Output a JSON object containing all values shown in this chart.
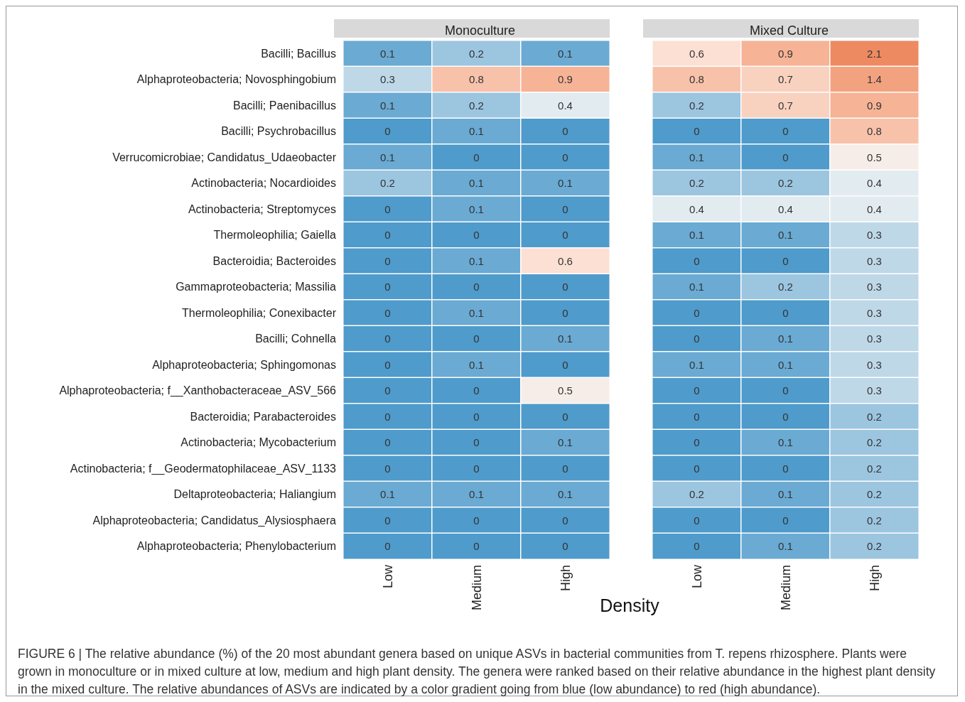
{
  "chart_data": [
    {
      "type": "heatmap",
      "title": "Monoculture",
      "xlabel": "Density",
      "categories": [
        "Low",
        "Medium",
        "High"
      ],
      "y_categories": [
        "Bacilli; Bacillus",
        "Alphaproteobacteria; Novosphingobium",
        "Bacilli; Paenibacillus",
        "Bacilli; Psychrobacillus",
        "Verrucomicrobiae; Candidatus_Udaeobacter",
        "Actinobacteria; Nocardioides",
        "Actinobacteria; Streptomyces",
        "Thermoleophilia; Gaiella",
        "Bacteroidia; Bacteroides",
        "Gammaproteobacteria; Massilia",
        "Thermoleophilia; Conexibacter",
        "Bacilli; Cohnella",
        "Alphaproteobacteria; Sphingomonas",
        "Alphaproteobacteria; f__Xanthobacteraceae_ASV_566",
        "Bacteroidia; Parabacteroides",
        "Actinobacteria; Mycobacterium",
        "Actinobacteria; f__Geodermatophilaceae_ASV_1133",
        "Deltaproteobacteria; Haliangium",
        "Alphaproteobacteria; Candidatus_Alysiosphaera",
        "Alphaproteobacteria; Phenylobacterium"
      ],
      "cells": [
        [
          0.1,
          0.2,
          0.1
        ],
        [
          0.3,
          0.8,
          0.9
        ],
        [
          0.1,
          0.2,
          0.4
        ],
        [
          0,
          0.1,
          0
        ],
        [
          0.1,
          0,
          0
        ],
        [
          0.2,
          0.1,
          0.1
        ],
        [
          0,
          0.1,
          0
        ],
        [
          0,
          0,
          0
        ],
        [
          0,
          0.1,
          0.6
        ],
        [
          0,
          0,
          0
        ],
        [
          0,
          0.1,
          0
        ],
        [
          0,
          0,
          0.1
        ],
        [
          0,
          0.1,
          0
        ],
        [
          0,
          0,
          0.5
        ],
        [
          0,
          0,
          0
        ],
        [
          0,
          0,
          0.1
        ],
        [
          0,
          0,
          0
        ],
        [
          0.1,
          0.1,
          0.1
        ],
        [
          0,
          0,
          0
        ],
        [
          0,
          0,
          0
        ]
      ],
      "data_labels": true,
      "annotations": [
        "FIGURE 6 | The relative abundance (%) of the 20 most abundant genera based on unique ASVs in bacterial communities from T. repens rhizosphere. Plants were grown in monoculture or in mixed culture at low, medium and high plant density. The genera were ranked based on their relative abundance in the highest plant density in the mixed culture. The relative abundances of ASVs are indicated by a color gradient going from blue (low abundance) to red (high abundance)."
      ]
    },
    {
      "type": "heatmap",
      "title": "Mixed Culture",
      "categories": [
        "Low",
        "Medium",
        "High"
      ],
      "y_categories": [
        "Bacilli; Bacillus",
        "Alphaproteobacteria; Novosphingobium",
        "Bacilli; Paenibacillus",
        "Bacilli; Psychrobacillus",
        "Verrucomicrobiae; Candidatus_Udaeobacter",
        "Actinobacteria; Nocardioides",
        "Actinobacteria; Streptomyces",
        "Thermoleophilia; Gaiella",
        "Bacteroidia; Bacteroides",
        "Gammaproteobacteria; Massilia",
        "Thermoleophilia; Conexibacter",
        "Bacilli; Cohnella",
        "Alphaproteobacteria; Sphingomonas",
        "Alphaproteobacteria; f__Xanthobacteraceae_ASV_566",
        "Bacteroidia; Parabacteroides",
        "Actinobacteria; Mycobacterium",
        "Actinobacteria; f__Geodermatophilaceae_ASV_1133",
        "Deltaproteobacteria; Haliangium",
        "Alphaproteobacteria; Candidatus_Alysiosphaera",
        "Alphaproteobacteria; Phenylobacterium"
      ],
      "cells": [
        [
          0.6,
          0.9,
          2.1
        ],
        [
          0.8,
          0.7,
          1.4
        ],
        [
          0.2,
          0.7,
          0.9
        ],
        [
          0,
          0,
          0.8
        ],
        [
          0.1,
          0,
          0.5
        ],
        [
          0.2,
          0.2,
          0.4
        ],
        [
          0.4,
          0.4,
          0.4
        ],
        [
          0.1,
          0.1,
          0.3
        ],
        [
          0,
          0,
          0.3
        ],
        [
          0.1,
          0.2,
          0.3
        ],
        [
          0,
          0,
          0.3
        ],
        [
          0,
          0.1,
          0.3
        ],
        [
          0.1,
          0.1,
          0.3
        ],
        [
          0,
          0,
          0.3
        ],
        [
          0,
          0,
          0.2
        ],
        [
          0,
          0.1,
          0.2
        ],
        [
          0,
          0,
          0.2
        ],
        [
          0.2,
          0.1,
          0.2
        ],
        [
          0,
          0,
          0.2
        ],
        [
          0,
          0.1,
          0.2
        ]
      ],
      "data_labels": true,
      "tick_labels": "x"
    }
  ]
}
